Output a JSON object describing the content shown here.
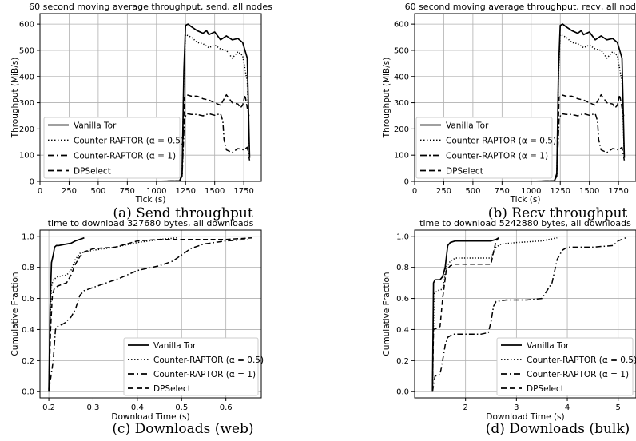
{
  "chart_data": [
    {
      "type": "line",
      "title": "60 second moving average throughput, send, all nodes",
      "caption": "(a) Send throughput",
      "xlabel": "Tick (s)",
      "ylabel": "Throughput (MiB/s)",
      "xlim": [
        0,
        1900
      ],
      "ylim": [
        0,
        640
      ],
      "xticks": [
        0,
        250,
        500,
        750,
        1000,
        1250,
        1500,
        1750
      ],
      "yticks": [
        0,
        100,
        200,
        300,
        400,
        500,
        600
      ],
      "grid": true,
      "legend": "lower-left",
      "series": [
        {
          "name": "Vanilla Tor",
          "dash": "solid",
          "x": [
            0,
            1000,
            1200,
            1220,
            1235,
            1250,
            1270,
            1300,
            1350,
            1400,
            1430,
            1450,
            1500,
            1550,
            1600,
            1650,
            1700,
            1740,
            1760,
            1780,
            1800
          ],
          "y": [
            0,
            0,
            2,
            30,
            420,
            595,
            600,
            590,
            575,
            565,
            575,
            560,
            570,
            540,
            555,
            540,
            545,
            530,
            500,
            470,
            90
          ]
        },
        {
          "name": "Counter-RAPTOR (α = 0.5)",
          "dash": "dotted",
          "x": [
            0,
            1000,
            1200,
            1220,
            1235,
            1250,
            1300,
            1350,
            1400,
            1450,
            1500,
            1550,
            1600,
            1650,
            1700,
            1740,
            1760,
            1780,
            1800
          ],
          "y": [
            0,
            0,
            2,
            30,
            400,
            560,
            550,
            530,
            525,
            510,
            520,
            505,
            500,
            470,
            495,
            480,
            430,
            380,
            90
          ]
        },
        {
          "name": "Counter-RAPTOR (α = 1)",
          "dash": "dashdot",
          "x": [
            0,
            1000,
            1200,
            1220,
            1240,
            1260,
            1300,
            1350,
            1400,
            1450,
            1500,
            1550,
            1570,
            1580,
            1600,
            1650,
            1700,
            1750,
            1780,
            1800
          ],
          "y": [
            0,
            0,
            2,
            20,
            240,
            258,
            255,
            255,
            250,
            258,
            252,
            258,
            230,
            160,
            120,
            110,
            125,
            120,
            130,
            80
          ]
        },
        {
          "name": "DPSelect",
          "dash": "dashed",
          "x": [
            0,
            1000,
            1200,
            1220,
            1240,
            1260,
            1300,
            1350,
            1400,
            1450,
            1500,
            1550,
            1600,
            1650,
            1700,
            1720,
            1740,
            1760,
            1780,
            1800
          ],
          "y": [
            0,
            0,
            2,
            20,
            320,
            330,
            325,
            325,
            315,
            310,
            300,
            290,
            330,
            300,
            295,
            280,
            290,
            330,
            280,
            240
          ]
        }
      ]
    },
    {
      "type": "line",
      "title": "60 second moving average throughput, recv, all nodes",
      "caption": "(b) Recv throughput",
      "xlabel": "Tick (s)",
      "ylabel": "Throughput (MiB/s)",
      "xlim": [
        0,
        1900
      ],
      "ylim": [
        0,
        640
      ],
      "xticks": [
        0,
        250,
        500,
        750,
        1000,
        1250,
        1500,
        1750
      ],
      "yticks": [
        0,
        100,
        200,
        300,
        400,
        500,
        600
      ],
      "grid": true,
      "legend": "lower-left",
      "series": [
        {
          "name": "Vanilla Tor",
          "dash": "solid",
          "x": [
            0,
            1000,
            1200,
            1220,
            1235,
            1250,
            1270,
            1300,
            1350,
            1400,
            1430,
            1450,
            1500,
            1550,
            1600,
            1650,
            1700,
            1740,
            1760,
            1780,
            1800
          ],
          "y": [
            0,
            0,
            2,
            30,
            420,
            595,
            600,
            590,
            575,
            565,
            575,
            560,
            570,
            540,
            555,
            540,
            545,
            530,
            500,
            470,
            90
          ]
        },
        {
          "name": "Counter-RAPTOR (α = 0.5)",
          "dash": "dotted",
          "x": [
            0,
            1000,
            1200,
            1220,
            1235,
            1250,
            1300,
            1350,
            1400,
            1450,
            1500,
            1550,
            1600,
            1650,
            1700,
            1740,
            1760,
            1780,
            1800
          ],
          "y": [
            0,
            0,
            2,
            30,
            400,
            560,
            550,
            530,
            525,
            510,
            520,
            505,
            500,
            470,
            495,
            480,
            430,
            380,
            90
          ]
        },
        {
          "name": "Counter-RAPTOR (α = 1)",
          "dash": "dashdot",
          "x": [
            0,
            1000,
            1200,
            1220,
            1240,
            1260,
            1300,
            1350,
            1400,
            1450,
            1500,
            1550,
            1570,
            1580,
            1600,
            1650,
            1700,
            1750,
            1780,
            1800
          ],
          "y": [
            0,
            0,
            2,
            20,
            240,
            258,
            255,
            255,
            250,
            258,
            252,
            258,
            230,
            160,
            120,
            110,
            125,
            120,
            130,
            80
          ]
        },
        {
          "name": "DPSelect",
          "dash": "dashed",
          "x": [
            0,
            1000,
            1200,
            1220,
            1240,
            1260,
            1300,
            1350,
            1400,
            1450,
            1500,
            1550,
            1600,
            1650,
            1700,
            1720,
            1740,
            1760,
            1780,
            1800
          ],
          "y": [
            0,
            0,
            2,
            20,
            320,
            330,
            325,
            325,
            315,
            310,
            300,
            290,
            330,
            300,
            295,
            280,
            290,
            330,
            280,
            240
          ]
        }
      ]
    },
    {
      "type": "line",
      "title": "time to download 327680 bytes, all downloads",
      "caption": "(c) Downloads (web)",
      "xlabel": "Download Time (s)",
      "ylabel": "Cumulative Fraction",
      "xlim": [
        0.18,
        0.68
      ],
      "ylim": [
        -0.04,
        1.04
      ],
      "xticks": [
        0.2,
        0.3,
        0.4,
        0.5,
        0.6
      ],
      "yticks": [
        0.0,
        0.2,
        0.4,
        0.6,
        0.8,
        1.0
      ],
      "grid": true,
      "legend": "lower-right",
      "series": [
        {
          "name": "Vanilla Tor",
          "dash": "solid",
          "x": [
            0.2,
            0.203,
            0.206,
            0.21,
            0.213,
            0.217,
            0.222,
            0.23,
            0.24,
            0.25,
            0.26,
            0.27,
            0.28
          ],
          "y": [
            0.0,
            0.55,
            0.83,
            0.88,
            0.93,
            0.94,
            0.94,
            0.945,
            0.95,
            0.955,
            0.97,
            0.98,
            0.99
          ]
        },
        {
          "name": "Counter-RAPTOR (α = 0.5)",
          "dash": "dotted",
          "x": [
            0.2,
            0.203,
            0.206,
            0.21,
            0.215,
            0.22,
            0.24,
            0.25,
            0.26,
            0.27,
            0.28,
            0.3,
            0.35,
            0.4,
            0.45,
            0.49
          ],
          "y": [
            0.0,
            0.45,
            0.68,
            0.72,
            0.73,
            0.74,
            0.75,
            0.78,
            0.85,
            0.89,
            0.9,
            0.91,
            0.93,
            0.96,
            0.98,
            0.99
          ]
        },
        {
          "name": "Counter-RAPTOR (α = 1)",
          "dash": "dashdot",
          "x": [
            0.2,
            0.205,
            0.21,
            0.215,
            0.22,
            0.235,
            0.25,
            0.26,
            0.27,
            0.28,
            0.3,
            0.33,
            0.36,
            0.4,
            0.45,
            0.48,
            0.5,
            0.52,
            0.55,
            0.6,
            0.65
          ],
          "y": [
            0.0,
            0.1,
            0.2,
            0.4,
            0.42,
            0.44,
            0.48,
            0.53,
            0.62,
            0.65,
            0.67,
            0.7,
            0.73,
            0.78,
            0.81,
            0.84,
            0.88,
            0.92,
            0.95,
            0.97,
            0.98
          ]
        },
        {
          "name": "DPSelect",
          "dash": "dashed",
          "x": [
            0.2,
            0.204,
            0.208,
            0.212,
            0.216,
            0.22,
            0.24,
            0.25,
            0.26,
            0.27,
            0.28,
            0.3,
            0.35,
            0.4,
            0.45,
            0.5,
            0.55,
            0.6,
            0.66
          ],
          "y": [
            0.0,
            0.4,
            0.62,
            0.66,
            0.67,
            0.68,
            0.7,
            0.75,
            0.82,
            0.87,
            0.9,
            0.92,
            0.93,
            0.97,
            0.98,
            0.98,
            0.98,
            0.98,
            0.99
          ]
        }
      ]
    },
    {
      "type": "line",
      "title": "time to download 5242880 bytes, all downloads",
      "caption": "(d) Downloads (bulk)",
      "xlabel": "Download Time (s)",
      "ylabel": "Cumulative Fraction",
      "xlim": [
        1.0,
        5.35
      ],
      "ylim": [
        -0.04,
        1.04
      ],
      "xticks": [
        2,
        3,
        4,
        5
      ],
      "yticks": [
        0.0,
        0.2,
        0.4,
        0.6,
        0.8,
        1.0
      ],
      "grid": true,
      "legend": "lower-right",
      "series": [
        {
          "name": "Vanilla Tor",
          "dash": "solid",
          "x": [
            1.35,
            1.37,
            1.4,
            1.5,
            1.55,
            1.6,
            1.65,
            1.7,
            1.8,
            2.0,
            2.3,
            2.5,
            2.6,
            2.65
          ],
          "y": [
            0.0,
            0.7,
            0.72,
            0.72,
            0.74,
            0.8,
            0.94,
            0.96,
            0.97,
            0.97,
            0.97,
            0.97,
            0.98,
            0.99
          ]
        },
        {
          "name": "Counter-RAPTOR (α = 0.5)",
          "dash": "dotted",
          "x": [
            1.35,
            1.38,
            1.45,
            1.55,
            1.62,
            1.7,
            1.8,
            2.0,
            2.3,
            2.5,
            2.6,
            2.7,
            3.0,
            3.5,
            3.8
          ],
          "y": [
            0.0,
            0.63,
            0.65,
            0.66,
            0.8,
            0.84,
            0.86,
            0.86,
            0.86,
            0.86,
            0.93,
            0.95,
            0.96,
            0.97,
            0.99
          ]
        },
        {
          "name": "Counter-RAPTOR (α = 1)",
          "dash": "dashdot",
          "x": [
            1.35,
            1.4,
            1.5,
            1.55,
            1.6,
            1.65,
            1.75,
            2.0,
            2.3,
            2.45,
            2.5,
            2.55,
            2.6,
            2.8,
            3.2,
            3.5,
            3.7,
            3.8,
            3.9,
            4.0,
            4.5,
            4.9,
            5.0,
            5.15
          ],
          "y": [
            0.0,
            0.1,
            0.11,
            0.2,
            0.3,
            0.35,
            0.37,
            0.37,
            0.37,
            0.38,
            0.45,
            0.55,
            0.58,
            0.59,
            0.59,
            0.6,
            0.7,
            0.85,
            0.91,
            0.93,
            0.93,
            0.94,
            0.97,
            0.99
          ]
        },
        {
          "name": "DPSelect",
          "dash": "dashed",
          "x": [
            1.35,
            1.37,
            1.45,
            1.5,
            1.55,
            1.62,
            1.7,
            1.8,
            2.0,
            2.3,
            2.5,
            2.55,
            2.6,
            2.65
          ],
          "y": [
            0.0,
            0.4,
            0.41,
            0.42,
            0.6,
            0.78,
            0.81,
            0.82,
            0.82,
            0.82,
            0.82,
            0.9,
            0.97,
            0.99
          ]
        }
      ]
    }
  ]
}
